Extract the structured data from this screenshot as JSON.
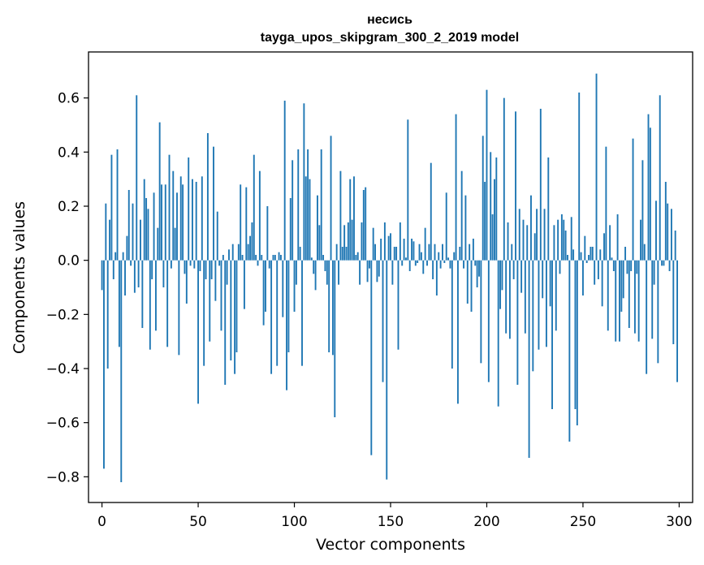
{
  "chart_data": {
    "type": "bar",
    "title": "несись",
    "subtitle": "tayga_upos_skipgram_300_2_2019 model",
    "xlabel": "Vector components",
    "ylabel": "Components values",
    "xlim": [
      -7,
      307
    ],
    "ylim": [
      -0.895,
      0.77
    ],
    "xticks": [
      0,
      50,
      100,
      150,
      200,
      250,
      300
    ],
    "xtick_labels": [
      "0",
      "50",
      "100",
      "150",
      "200",
      "250",
      "300"
    ],
    "yticks": [
      -0.8,
      -0.6,
      -0.4,
      -0.2,
      0.0,
      0.2,
      0.4,
      0.6
    ],
    "ytick_labels": [
      "−0.8",
      "−0.6",
      "−0.4",
      "−0.2",
      "0.0",
      "0.2",
      "0.4",
      "0.6"
    ],
    "bar_color": "#1f77b4",
    "values": [
      -0.11,
      -0.77,
      0.21,
      -0.4,
      0.15,
      0.39,
      -0.07,
      0.03,
      0.41,
      -0.32,
      -0.82,
      0.03,
      -0.13,
      0.09,
      0.26,
      -0.02,
      0.21,
      -0.12,
      0.61,
      -0.1,
      0.15,
      -0.25,
      0.3,
      0.23,
      0.19,
      -0.33,
      -0.07,
      0.25,
      -0.26,
      0.12,
      0.51,
      0.28,
      -0.1,
      0.28,
      -0.32,
      0.39,
      -0.03,
      0.33,
      0.12,
      0.25,
      -0.35,
      0.31,
      0.28,
      -0.05,
      -0.16,
      0.38,
      -0.02,
      0.3,
      -0.03,
      0.29,
      -0.53,
      -0.04,
      0.31,
      -0.39,
      -0.07,
      0.47,
      -0.3,
      -0.07,
      0.42,
      -0.15,
      0.18,
      -0.02,
      -0.26,
      0.02,
      -0.46,
      -0.09,
      0.04,
      -0.37,
      0.06,
      -0.42,
      -0.34,
      0.06,
      0.28,
      0.02,
      -0.18,
      0.27,
      0.06,
      0.09,
      0.14,
      0.39,
      0.02,
      -0.02,
      0.33,
      0.02,
      -0.24,
      -0.19,
      0.2,
      -0.03,
      -0.42,
      0.02,
      0.02,
      -0.39,
      0.03,
      0.02,
      -0.21,
      0.59,
      -0.48,
      -0.34,
      0.23,
      0.37,
      -0.19,
      -0.09,
      0.41,
      0.05,
      -0.39,
      0.58,
      0.31,
      0.41,
      0.3,
      0.01,
      -0.05,
      -0.11,
      0.24,
      0.13,
      0.41,
      0.02,
      -0.04,
      -0.09,
      -0.34,
      0.46,
      -0.35,
      -0.58,
      0.06,
      -0.09,
      0.33,
      0.05,
      0.13,
      0.05,
      0.14,
      0.3,
      0.15,
      0.31,
      0.02,
      0.03,
      -0.09,
      0.14,
      0.26,
      0.27,
      -0.08,
      -0.03,
      -0.72,
      0.12,
      0.06,
      -0.08,
      -0.06,
      0.08,
      -0.45,
      0.14,
      -0.81,
      0.09,
      0.1,
      -0.09,
      0.05,
      0.05,
      -0.33,
      0.14,
      -0.02,
      0.08,
      0.01,
      0.52,
      -0.04,
      0.08,
      0.07,
      -0.02,
      -0.01,
      0.06,
      0.03,
      -0.05,
      0.12,
      -0.02,
      0.06,
      0.36,
      -0.07,
      0.06,
      -0.13,
      0.03,
      -0.03,
      0.06,
      -0.01,
      0.25,
      0.01,
      -0.03,
      -0.4,
      0.03,
      0.54,
      -0.53,
      0.05,
      0.33,
      -0.03,
      0.24,
      -0.16,
      0.06,
      -0.19,
      0.08,
      -0.02,
      -0.1,
      -0.06,
      -0.38,
      0.46,
      0.29,
      0.63,
      -0.45,
      0.4,
      0.17,
      0.3,
      0.38,
      -0.54,
      -0.18,
      -0.11,
      0.6,
      -0.27,
      0.14,
      -0.29,
      0.06,
      -0.07,
      0.55,
      -0.46,
      0.19,
      -0.12,
      0.15,
      -0.27,
      0.13,
      -0.73,
      0.24,
      -0.41,
      0.1,
      0.19,
      -0.33,
      0.56,
      -0.14,
      0.19,
      -0.32,
      0.38,
      -0.17,
      -0.55,
      0.13,
      -0.26,
      0.15,
      -0.05,
      0.17,
      0.15,
      0.11,
      0.02,
      -0.67,
      0.16,
      0.04,
      -0.55,
      -0.61,
      0.62,
      0.03,
      -0.13,
      0.09,
      -0.01,
      0.02,
      0.05,
      0.05,
      -0.09,
      0.69,
      -0.07,
      0.04,
      -0.17,
      0.1,
      0.42,
      -0.26,
      0.13,
      0.01,
      -0.04,
      -0.3,
      0.17,
      -0.3,
      -0.19,
      -0.14,
      0.05,
      -0.05,
      -0.25,
      -0.04,
      0.45,
      -0.27,
      -0.05,
      -0.3,
      0.15,
      0.37,
      0.06,
      -0.42,
      0.54,
      0.49,
      -0.29,
      -0.09,
      0.22,
      -0.38,
      0.61,
      -0.02,
      -0.02,
      0.29,
      0.21,
      -0.04,
      0.19,
      -0.31,
      0.11,
      -0.45
    ]
  }
}
